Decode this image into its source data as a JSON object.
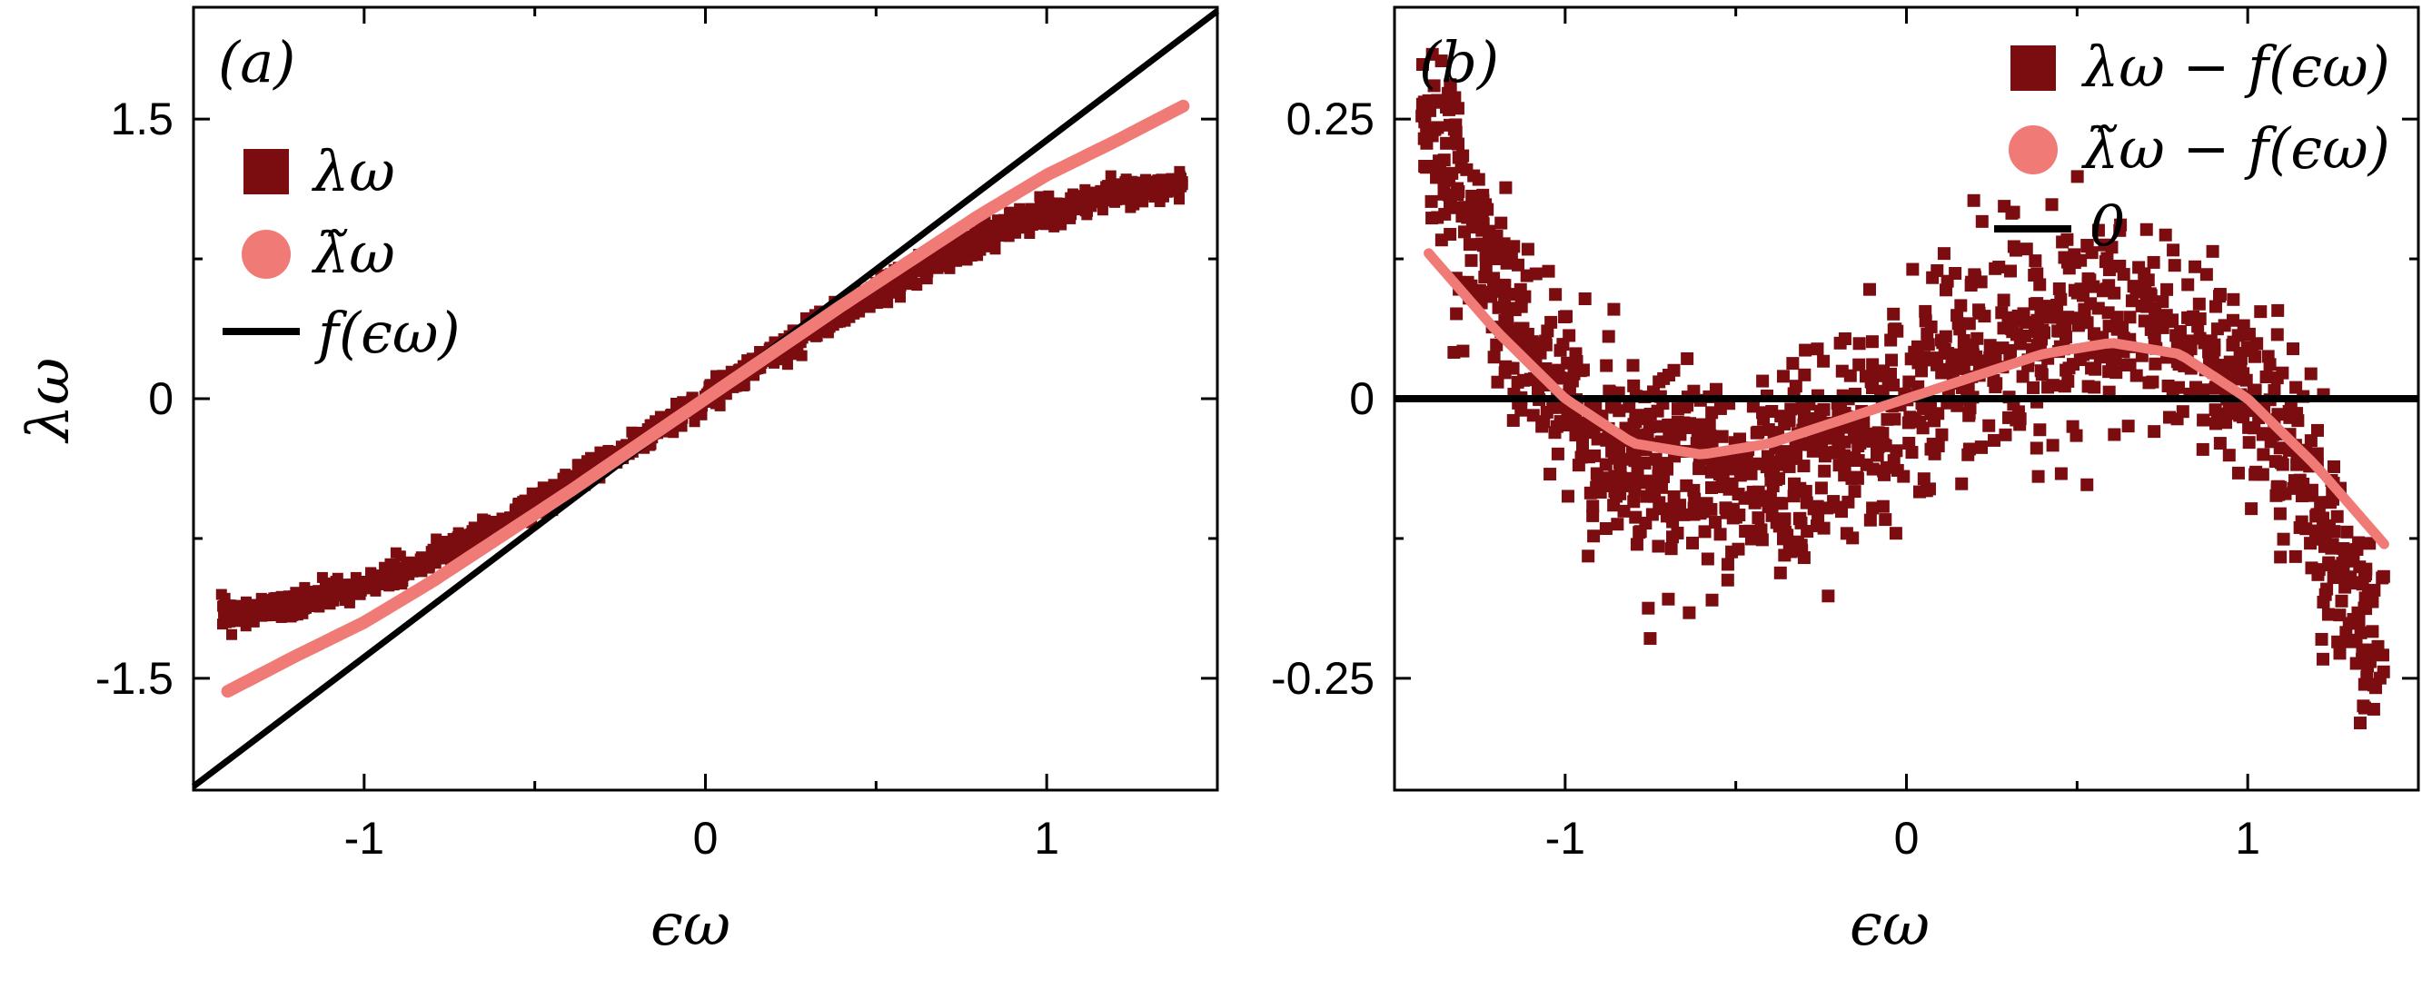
{
  "colors": {
    "raw": "#7b0c10",
    "smoothed": "#f07a76",
    "reference": "#000000"
  },
  "chart_data": [
    {
      "type": "scatter",
      "panel_label": "(a)",
      "xlabel": "ϵω",
      "ylabel": "λω",
      "xlim": [
        -1.5,
        1.5
      ],
      "ylim": [
        -2.1,
        2.1
      ],
      "x_ticks": [
        -1,
        0,
        1
      ],
      "x_tick_labels": [
        "-1",
        "0",
        "1"
      ],
      "y_ticks": [
        -1.5,
        0,
        1.5
      ],
      "y_tick_labels": [
        "-1.5",
        "0",
        "1.5"
      ],
      "legend_position": "top-left",
      "grid": false,
      "series": [
        {
          "name": "λω",
          "marker": "square",
          "x_range": [
            -1.42,
            1.4
          ],
          "spread": 0.035,
          "y_model": "x + 0.19*x - 0.19*x^3"
        },
        {
          "name": "λ̃ω",
          "marker": "circle",
          "x": [
            -1.4,
            -1.2,
            -1.0,
            -0.8,
            -0.6,
            -0.4,
            -0.2,
            0.0,
            0.2,
            0.4,
            0.6,
            0.8,
            1.0,
            1.2,
            1.4
          ],
          "y": [
            -1.57,
            -1.38,
            -1.2,
            -0.98,
            -0.74,
            -0.5,
            -0.25,
            0.0,
            0.25,
            0.5,
            0.74,
            0.98,
            1.2,
            1.38,
            1.57
          ]
        },
        {
          "name": "f(ϵω)",
          "marker": "line",
          "x": [
            -1.5,
            1.5
          ],
          "y": [
            -2.08,
            2.08
          ]
        }
      ]
    },
    {
      "type": "scatter",
      "panel_label": "(b)",
      "xlabel": "ϵω",
      "ylabel": "",
      "xlim": [
        -1.5,
        1.5
      ],
      "ylim": [
        -0.35,
        0.35
      ],
      "x_ticks": [
        -1,
        0,
        1
      ],
      "x_tick_labels": [
        "-1",
        "0",
        "1"
      ],
      "y_ticks": [
        -0.25,
        0,
        0.25
      ],
      "y_tick_labels": [
        "-0.25",
        "0",
        "0.25"
      ],
      "legend_position": "top-right",
      "grid": false,
      "series": [
        {
          "name": "λω − f(ϵω)",
          "marker": "square",
          "x_range": [
            -1.42,
            1.4
          ],
          "spread": 0.045,
          "y_model": "0.19*x - 0.19*x^3"
        },
        {
          "name": "λ̃ω − f(ϵω)",
          "marker": "circle",
          "x": [
            -1.4,
            -1.2,
            -1.0,
            -0.8,
            -0.6,
            -0.4,
            -0.2,
            0.0,
            0.2,
            0.4,
            0.6,
            0.8,
            1.0,
            1.2,
            1.4
          ],
          "y": [
            0.13,
            0.06,
            0.0,
            -0.04,
            -0.05,
            -0.04,
            -0.02,
            0.0,
            0.02,
            0.04,
            0.05,
            0.04,
            0.0,
            -0.06,
            -0.13
          ]
        },
        {
          "name": "0",
          "marker": "line",
          "x": [
            -1.5,
            1.5
          ],
          "y": [
            0,
            0
          ]
        }
      ]
    }
  ]
}
